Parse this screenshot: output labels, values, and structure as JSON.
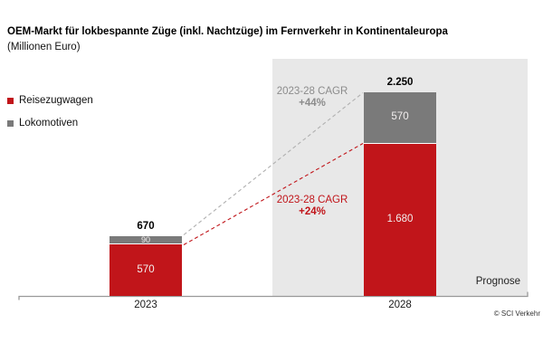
{
  "header": {
    "title": "OEM-Markt für lokbespannte Züge (inkl. Nachtzüge) im Fernverkehr in Kontinentaleuropa",
    "subtitle": "(Millionen Euro)"
  },
  "legend": {
    "items": [
      {
        "label": "Reisezugwagen",
        "color": "#c1151a"
      },
      {
        "label": "Lokomotiven",
        "color": "#7a7a7a"
      }
    ]
  },
  "chart_data": {
    "type": "bar",
    "stacked": true,
    "title": "OEM-Markt für lokbespannte Züge (inkl. Nachtzüge) im Fernverkehr in Kontinentaleuropa",
    "unit_label": "Millionen Euro",
    "categories": [
      "2023",
      "2028"
    ],
    "series": [
      {
        "name": "Reisezugwagen",
        "color": "#c1151a",
        "values": [
          570,
          1680
        ],
        "value_labels": [
          "570",
          "1.680"
        ]
      },
      {
        "name": "Lokomotiven",
        "color": "#7a7a7a",
        "values": [
          90,
          570
        ],
        "value_labels": [
          "90",
          "570"
        ]
      }
    ],
    "totals": [
      670,
      2250
    ],
    "total_labels": [
      "670",
      "2.250"
    ],
    "annotations": [
      {
        "line1": "2023-28 CAGR",
        "line2": "+44%",
        "color": "#8c8c8c",
        "refers_to": "Lokomotiven"
      },
      {
        "line1": "2023-28 CAGR",
        "line2": "+24%",
        "color": "#c1151a",
        "refers_to": "Reisezugwagen"
      }
    ],
    "prognose_label": "Prognose",
    "legend_position": "left",
    "grid": false,
    "colors": {
      "panel_background": "#e8e8e8",
      "axis": "#999999",
      "dashed_line_gray": "#b0b0b0",
      "dashed_line_red": "#c1151a"
    }
  },
  "footer": {
    "copyright": "© SCI Verkehr"
  }
}
